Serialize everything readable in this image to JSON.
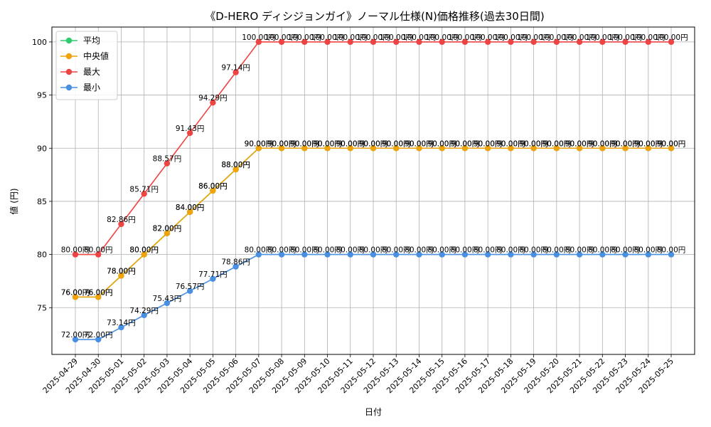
{
  "chart_data": {
    "type": "line",
    "title": "《D-HERO ディシジョンガイ》ノーマル仕様(N)価格推移(過去30日間)",
    "xlabel": "日付",
    "ylabel": "値 (円)",
    "ylim": [
      70.6,
      101.4
    ],
    "yticks": [
      75,
      80,
      85,
      90,
      95,
      100
    ],
    "grid": true,
    "legend_position": "top-left",
    "label_suffix": "円",
    "categories": [
      "2025-04-29",
      "2025-04-30",
      "2025-05-01",
      "2025-05-02",
      "2025-05-03",
      "2025-05-04",
      "2025-05-05",
      "2025-05-06",
      "2025-05-07",
      "2025-05-08",
      "2025-05-09",
      "2025-05-10",
      "2025-05-11",
      "2025-05-12",
      "2025-05-13",
      "2025-05-14",
      "2025-05-15",
      "2025-05-16",
      "2025-05-17",
      "2025-05-18",
      "2025-05-19",
      "2025-05-20",
      "2025-05-21",
      "2025-05-22",
      "2025-05-23",
      "2025-05-24",
      "2025-05-25"
    ],
    "series": [
      {
        "name": "平均",
        "color": "#2ecc71",
        "values": [
          76.0,
          76.0,
          78.0,
          80.0,
          82.0,
          84.0,
          86.0,
          88.0,
          90.0,
          90.0,
          90.0,
          90.0,
          90.0,
          90.0,
          90.0,
          90.0,
          90.0,
          90.0,
          90.0,
          90.0,
          90.0,
          90.0,
          90.0,
          90.0,
          90.0,
          90.0,
          90.0
        ]
      },
      {
        "name": "中央値",
        "color": "#f0a30a",
        "values": [
          76.0,
          76.0,
          78.0,
          80.0,
          82.0,
          84.0,
          86.0,
          88.0,
          90.0,
          90.0,
          90.0,
          90.0,
          90.0,
          90.0,
          90.0,
          90.0,
          90.0,
          90.0,
          90.0,
          90.0,
          90.0,
          90.0,
          90.0,
          90.0,
          90.0,
          90.0,
          90.0
        ]
      },
      {
        "name": "最大",
        "color": "#ef4444",
        "values": [
          80.0,
          80.0,
          82.86,
          85.71,
          88.57,
          91.43,
          94.29,
          97.14,
          100.0,
          100.0,
          100.0,
          100.0,
          100.0,
          100.0,
          100.0,
          100.0,
          100.0,
          100.0,
          100.0,
          100.0,
          100.0,
          100.0,
          100.0,
          100.0,
          100.0,
          100.0,
          100.0
        ]
      },
      {
        "name": "最小",
        "color": "#4a90e2",
        "values": [
          72.0,
          72.0,
          73.14,
          74.29,
          75.43,
          76.57,
          77.71,
          78.86,
          80.0,
          80.0,
          80.0,
          80.0,
          80.0,
          80.0,
          80.0,
          80.0,
          80.0,
          80.0,
          80.0,
          80.0,
          80.0,
          80.0,
          80.0,
          80.0,
          80.0,
          80.0,
          80.0
        ]
      }
    ]
  }
}
